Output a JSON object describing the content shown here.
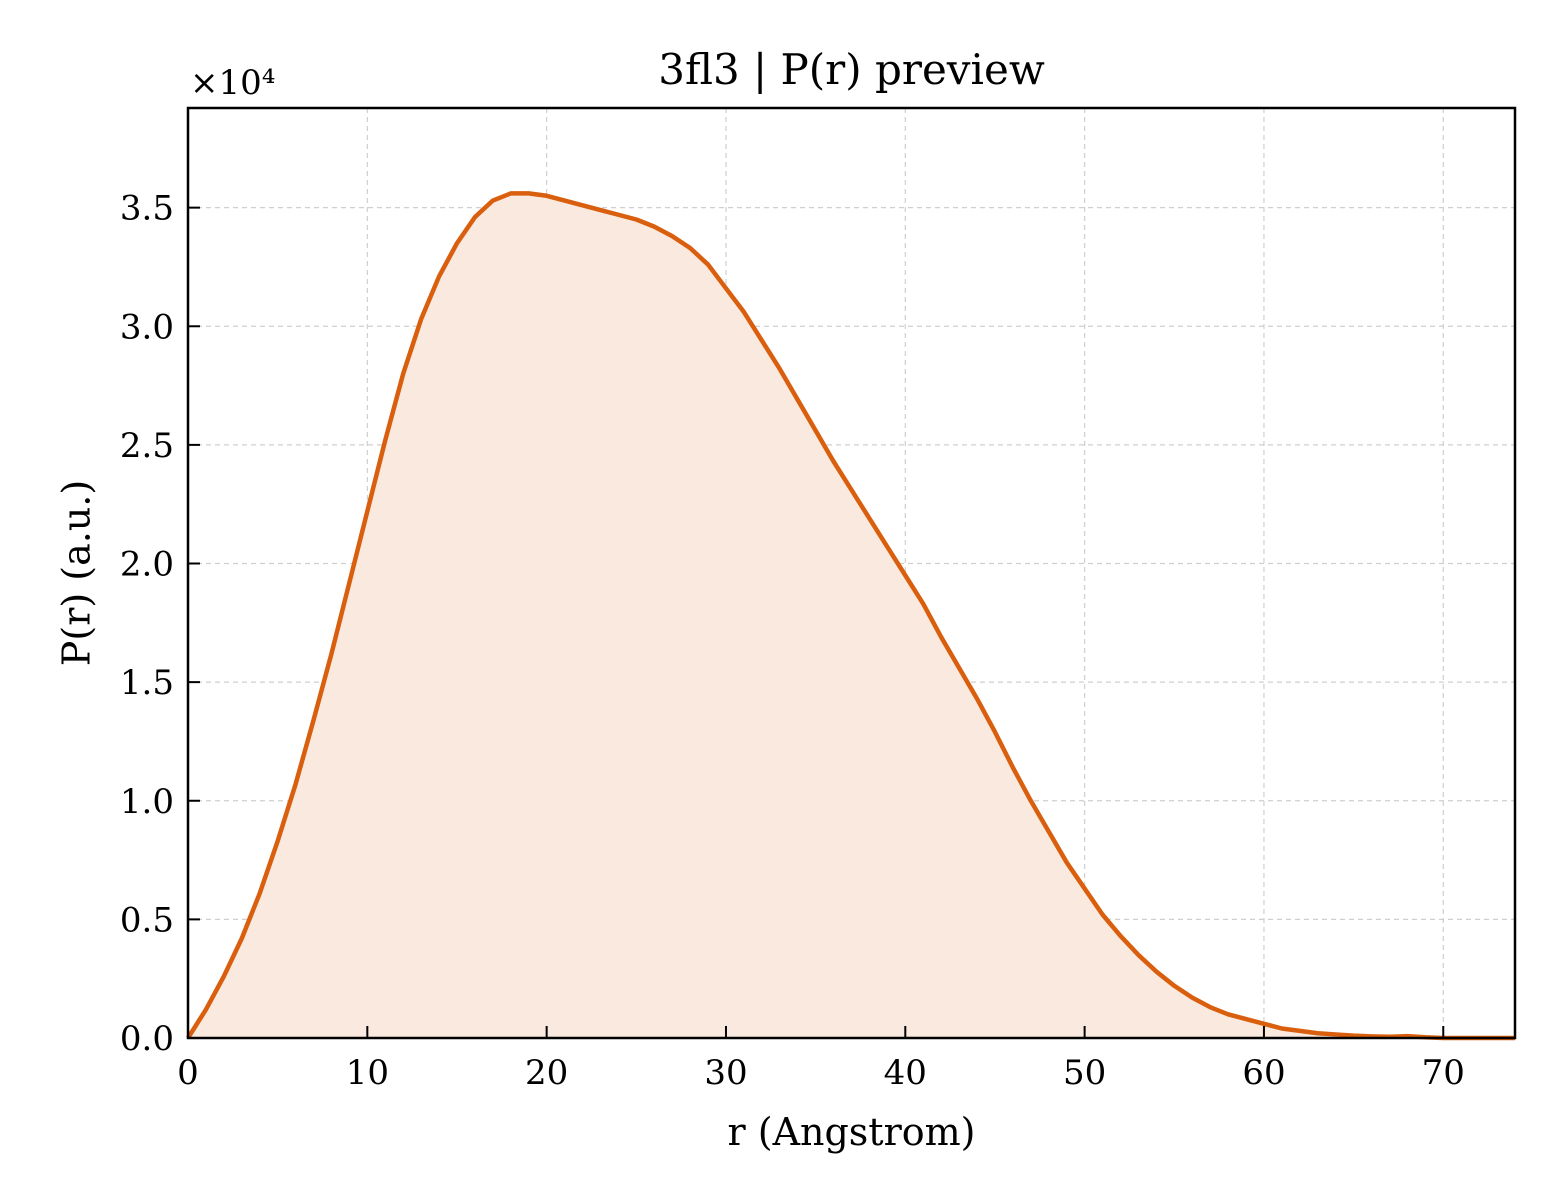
{
  "chart_data": {
    "type": "area",
    "title": "3fl3 | P(r) preview",
    "xlabel": "r (Angstrom)",
    "ylabel": "P(r) (a.u.)",
    "y_multiplier_label": "×10⁴",
    "xlim": [
      0,
      74
    ],
    "ylim": [
      0,
      3.92
    ],
    "y_scale_factor": 10000,
    "x_ticks": [
      0,
      10,
      20,
      30,
      40,
      50,
      60,
      70
    ],
    "y_ticks": [
      0.0,
      0.5,
      1.0,
      1.5,
      2.0,
      2.5,
      3.0,
      3.5
    ],
    "grid": true,
    "series": [
      {
        "color": "#d95f0e",
        "fill_color": "#f9e9de",
        "x": [
          0,
          1,
          2,
          3,
          4,
          5,
          6,
          7,
          8,
          9,
          10,
          11,
          12,
          13,
          14,
          15,
          16,
          17,
          18,
          19,
          20,
          21,
          22,
          23,
          24,
          25,
          26,
          27,
          28,
          29,
          30,
          31,
          32,
          33,
          34,
          35,
          36,
          37,
          38,
          39,
          40,
          41,
          42,
          43,
          44,
          45,
          46,
          47,
          48,
          49,
          50,
          51,
          52,
          53,
          54,
          55,
          56,
          57,
          58,
          59,
          60,
          61,
          62,
          63,
          64,
          65,
          66,
          67,
          68,
          69,
          70,
          71,
          72,
          73,
          74
        ],
        "values": [
          0.0,
          0.12,
          0.26,
          0.42,
          0.61,
          0.83,
          1.07,
          1.34,
          1.62,
          1.92,
          2.22,
          2.52,
          2.8,
          3.03,
          3.21,
          3.35,
          3.46,
          3.53,
          3.56,
          3.56,
          3.55,
          3.53,
          3.51,
          3.49,
          3.47,
          3.45,
          3.42,
          3.38,
          3.33,
          3.26,
          3.16,
          3.06,
          2.94,
          2.82,
          2.69,
          2.56,
          2.43,
          2.31,
          2.19,
          2.07,
          1.95,
          1.83,
          1.69,
          1.56,
          1.43,
          1.29,
          1.14,
          1.0,
          0.87,
          0.74,
          0.63,
          0.52,
          0.43,
          0.35,
          0.28,
          0.22,
          0.17,
          0.13,
          0.1,
          0.08,
          0.06,
          0.04,
          0.03,
          0.02,
          0.015,
          0.01,
          0.007,
          0.005,
          0.008,
          0.003,
          0.0,
          0.0,
          0.0,
          0.0,
          0.0
        ]
      }
    ]
  }
}
